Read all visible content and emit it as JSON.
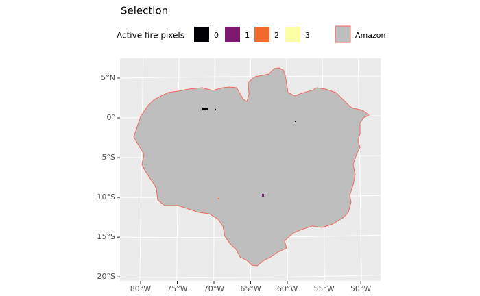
{
  "chart_data": {
    "type": "map",
    "title": "Selection",
    "legend_title": "Active fire pixels",
    "legend": [
      {
        "name": "0",
        "color": "#000004"
      },
      {
        "name": "1",
        "color": "#7b1a6e"
      },
      {
        "name": "2",
        "color": "#f0692b"
      },
      {
        "name": "3",
        "color": "#fcffa4"
      }
    ],
    "region": {
      "name": "Amazon",
      "fill": "#bebebe",
      "stroke": "#f06a5e"
    },
    "xlim": [
      -82.8,
      -47.3
    ],
    "ylim": [
      -20.5,
      7.5
    ],
    "xticks": [
      {
        "value": -80,
        "label": "80°W"
      },
      {
        "value": -75,
        "label": "75°W"
      },
      {
        "value": -70,
        "label": "70°W"
      },
      {
        "value": -65,
        "label": "65°W"
      },
      {
        "value": -60,
        "label": "60°W"
      },
      {
        "value": -55,
        "label": "55°W"
      },
      {
        "value": -50,
        "label": "50°W"
      }
    ],
    "yticks": [
      {
        "value": 5,
        "label": "5°N"
      },
      {
        "value": 0,
        "label": "0°"
      },
      {
        "value": -5,
        "label": "5°S"
      },
      {
        "value": -10,
        "label": "10°S"
      },
      {
        "value": -15,
        "label": "15°S"
      },
      {
        "value": -20,
        "label": "20°S"
      }
    ],
    "grid": true
  }
}
